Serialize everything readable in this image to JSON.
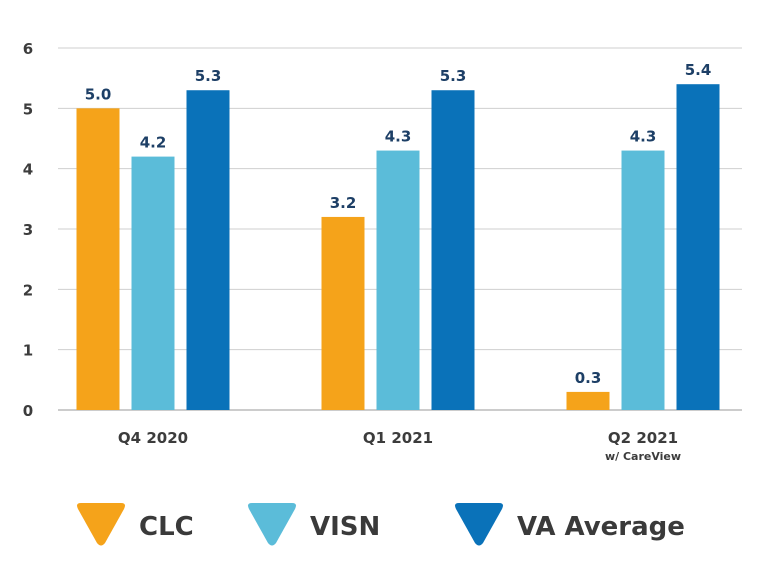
{
  "chart_data": {
    "type": "bar",
    "title": "",
    "xlabel": "",
    "ylabel": "",
    "ylim": [
      0,
      6
    ],
    "yticks": [
      0,
      1,
      2,
      3,
      4,
      5,
      6
    ],
    "grid": true,
    "legend_position": "bottom",
    "categories": [
      "Q4 2020",
      "Q1 2021",
      "Q2 2021"
    ],
    "category_sublabels": [
      "",
      "",
      "w/ CareView"
    ],
    "series": [
      {
        "name": "CLC",
        "color": "#f5a31a",
        "values": [
          5.0,
          3.2,
          0.3
        ],
        "labels": [
          "5.0",
          "3.2",
          "0.3"
        ]
      },
      {
        "name": "VISN",
        "color": "#5bbcd9",
        "values": [
          4.2,
          4.3,
          4.3
        ],
        "labels": [
          "4.2",
          "4.3",
          "4.3"
        ]
      },
      {
        "name": "VA Average",
        "color": "#0a72b9",
        "values": [
          5.3,
          5.3,
          5.4
        ],
        "labels": [
          "5.3",
          "5.3",
          "5.4"
        ]
      }
    ]
  }
}
